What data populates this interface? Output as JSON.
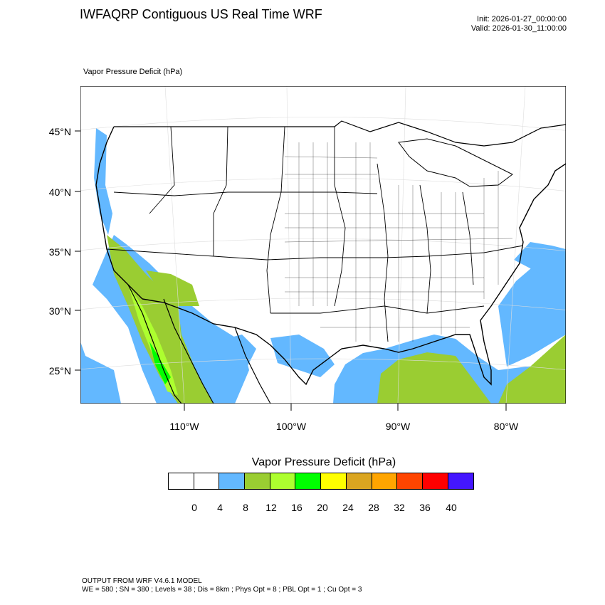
{
  "header": {
    "title": "IWFAQRP Contiguous US Real Time WRF",
    "init": "Init: 2026-01-27_00:00:00",
    "valid": "Valid: 2026-01-30_11:00:00"
  },
  "map": {
    "field_label": "Vapor Pressure Deficit   (hPa)",
    "lat_labels": [
      "45°N",
      "40°N",
      "35°N",
      "30°N",
      "25°N"
    ],
    "lon_labels": [
      "110°W",
      "100°W",
      "90°W",
      "80°W"
    ]
  },
  "legend": {
    "title": "Vapor Pressure Deficit  (hPa)",
    "colors": [
      "#ffffff",
      "#ffffff",
      "#63b8ff",
      "#9acd32",
      "#adff2f",
      "#00ff00",
      "#ffff00",
      "#daa520",
      "#ffa500",
      "#ff4500",
      "#ff0000",
      "#4416ff"
    ],
    "ticks": [
      "0",
      "4",
      "8",
      "12",
      "16",
      "20",
      "24",
      "28",
      "32",
      "36",
      "40"
    ]
  },
  "footer": {
    "line1": "OUTPUT FROM WRF V4.6.1 MODEL",
    "line2": "WE = 580 ; SN = 380 ; Levels = 38 ; Dis = 8km ; Phys Opt = 8 ; PBL Opt = 1 ; Cu Opt = 3"
  }
}
